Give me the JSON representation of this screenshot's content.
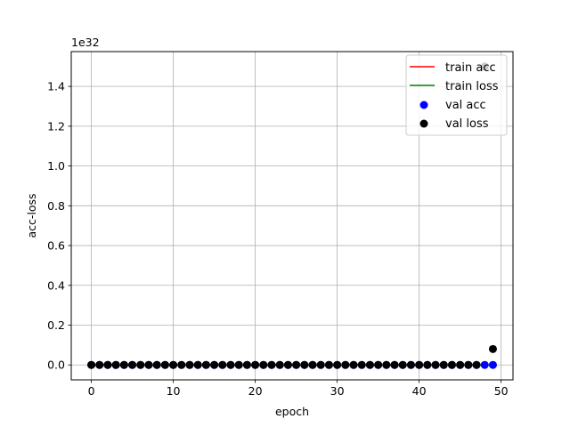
{
  "chart_data": {
    "type": "line",
    "xlabel": "epoch",
    "ylabel": "acc-loss",
    "y_offset_text": "1e32",
    "y_scale_factor": 1e+32,
    "xlim": [
      -2.45,
      51.45
    ],
    "ylim": [
      -0.075,
      1.575
    ],
    "xticks": [
      0,
      10,
      20,
      30,
      40,
      50
    ],
    "yticks": [
      0.0,
      0.2,
      0.4,
      0.6,
      0.8,
      1.0,
      1.2,
      1.4
    ],
    "ytick_labels": [
      "0.0",
      "0.2",
      "0.4",
      "0.6",
      "0.8",
      "1.0",
      "1.2",
      "1.4"
    ],
    "grid": true,
    "legend_position": "top-right",
    "x": [
      0,
      1,
      2,
      3,
      4,
      5,
      6,
      7,
      8,
      9,
      10,
      11,
      12,
      13,
      14,
      15,
      16,
      17,
      18,
      19,
      20,
      21,
      22,
      23,
      24,
      25,
      26,
      27,
      28,
      29,
      30,
      31,
      32,
      33,
      34,
      35,
      36,
      37,
      38,
      39,
      40,
      41,
      42,
      43,
      44,
      45,
      46,
      47,
      48,
      49
    ],
    "series": [
      {
        "name": "train acc",
        "kind": "line",
        "color": "#ff0000",
        "values": [
          0,
          0,
          0,
          0,
          0,
          0,
          0,
          0,
          0,
          0,
          0,
          0,
          0,
          0,
          0,
          0,
          0,
          0,
          0,
          0,
          0,
          0,
          0,
          0,
          0,
          0,
          0,
          0,
          0,
          0,
          0,
          0,
          0,
          0,
          0,
          0,
          0,
          0,
          0,
          0,
          0,
          0,
          0,
          0,
          0,
          0,
          0,
          0,
          0,
          0
        ]
      },
      {
        "name": "train loss",
        "kind": "line",
        "color": "#008000",
        "values": [
          0,
          0,
          0,
          0,
          0,
          0,
          0,
          0,
          0,
          0,
          0,
          0,
          0,
          0,
          0,
          0,
          0,
          0,
          0,
          0,
          0,
          0,
          0,
          0,
          0,
          0,
          0,
          0,
          0,
          0,
          0,
          0,
          0,
          0,
          0,
          0,
          0,
          0,
          0,
          0,
          0,
          0,
          0,
          0,
          0,
          0,
          0,
          0,
          0,
          0
        ]
      },
      {
        "name": "val acc",
        "kind": "scatter",
        "color": "#0000ff",
        "values": [
          0,
          0,
          0,
          0,
          0,
          0,
          0,
          0,
          0,
          0,
          0,
          0,
          0,
          0,
          0,
          0,
          0,
          0,
          0,
          0,
          0,
          0,
          0,
          0,
          0,
          0,
          0,
          0,
          0,
          0,
          0,
          0,
          0,
          0,
          0,
          0,
          0,
          0,
          0,
          0,
          0,
          0,
          0,
          0,
          0,
          0,
          0,
          0,
          0,
          0
        ]
      },
      {
        "name": "val loss",
        "kind": "scatter",
        "color": "#000000",
        "values": [
          0,
          0,
          0,
          0,
          0,
          0,
          0,
          0,
          0,
          0,
          0,
          0,
          0,
          0,
          0,
          0,
          0,
          0,
          0,
          0,
          0,
          0,
          0,
          0,
          0,
          0,
          0,
          0,
          0,
          0,
          0,
          0,
          0,
          0,
          0,
          0,
          0,
          0,
          0,
          0,
          0,
          0,
          0,
          0,
          0,
          0,
          0,
          0,
          1.5,
          0.08
        ]
      }
    ]
  }
}
